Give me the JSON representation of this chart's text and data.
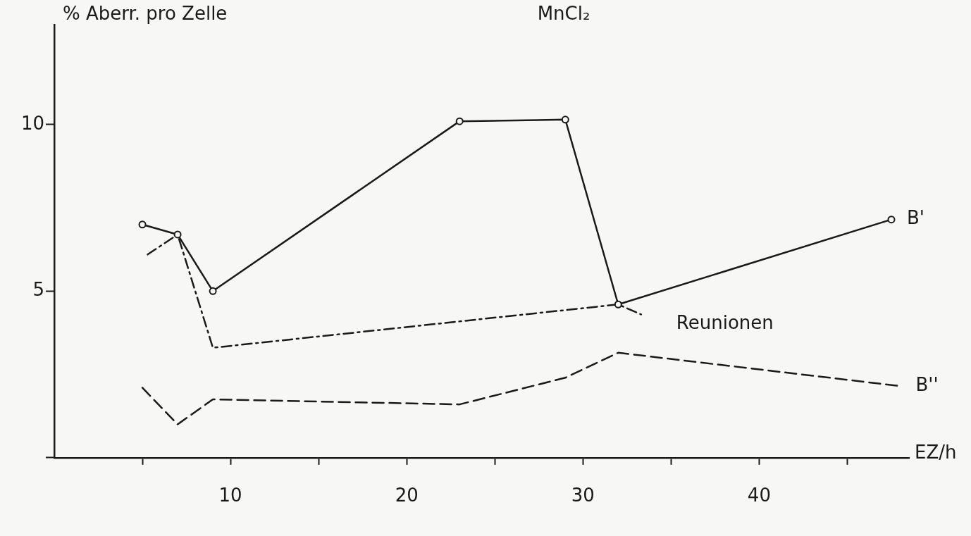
{
  "chart_data": {
    "type": "line",
    "title": "MnCl₂",
    "xlabel": "EZ/h",
    "ylabel": "% Aberr. pro Zelle",
    "xlim": [
      0,
      48.5
    ],
    "xticks": [
      {
        "value": 5,
        "label": null
      },
      10,
      {
        "value": 15,
        "label": null
      },
      20,
      {
        "value": 25,
        "label": null
      },
      30,
      {
        "value": 35,
        "label": null
      },
      40,
      {
        "value": 45,
        "label": null
      }
    ],
    "ylim": [
      0,
      13
    ],
    "yticks": [
      {
        "value": 0,
        "label": null
      },
      5,
      10
    ],
    "grid": false,
    "legend": false,
    "series": [
      {
        "name": "B'",
        "color": "#1a1a1a",
        "marker": "circle",
        "line_style": "solid",
        "x": [
          5,
          7,
          9,
          23,
          29,
          32,
          47.5
        ],
        "values": [
          7.0,
          6.7,
          5.0,
          10.1,
          10.15,
          4.6,
          7.15
        ]
      },
      {
        "name": "Reunionen",
        "color": "#1a1a1a",
        "marker": "none",
        "line_style": "dashdot",
        "x": [
          5.3,
          7,
          9,
          32,
          33.3
        ],
        "values": [
          6.1,
          6.7,
          3.3,
          4.6,
          4.3
        ]
      },
      {
        "name": "B''",
        "color": "#1a1a1a",
        "marker": "none",
        "line_style": "dashed",
        "x": [
          5,
          7,
          9,
          23,
          29,
          32,
          48
        ],
        "values": [
          2.1,
          1.0,
          1.75,
          1.6,
          2.4,
          3.15,
          2.15
        ]
      }
    ]
  }
}
